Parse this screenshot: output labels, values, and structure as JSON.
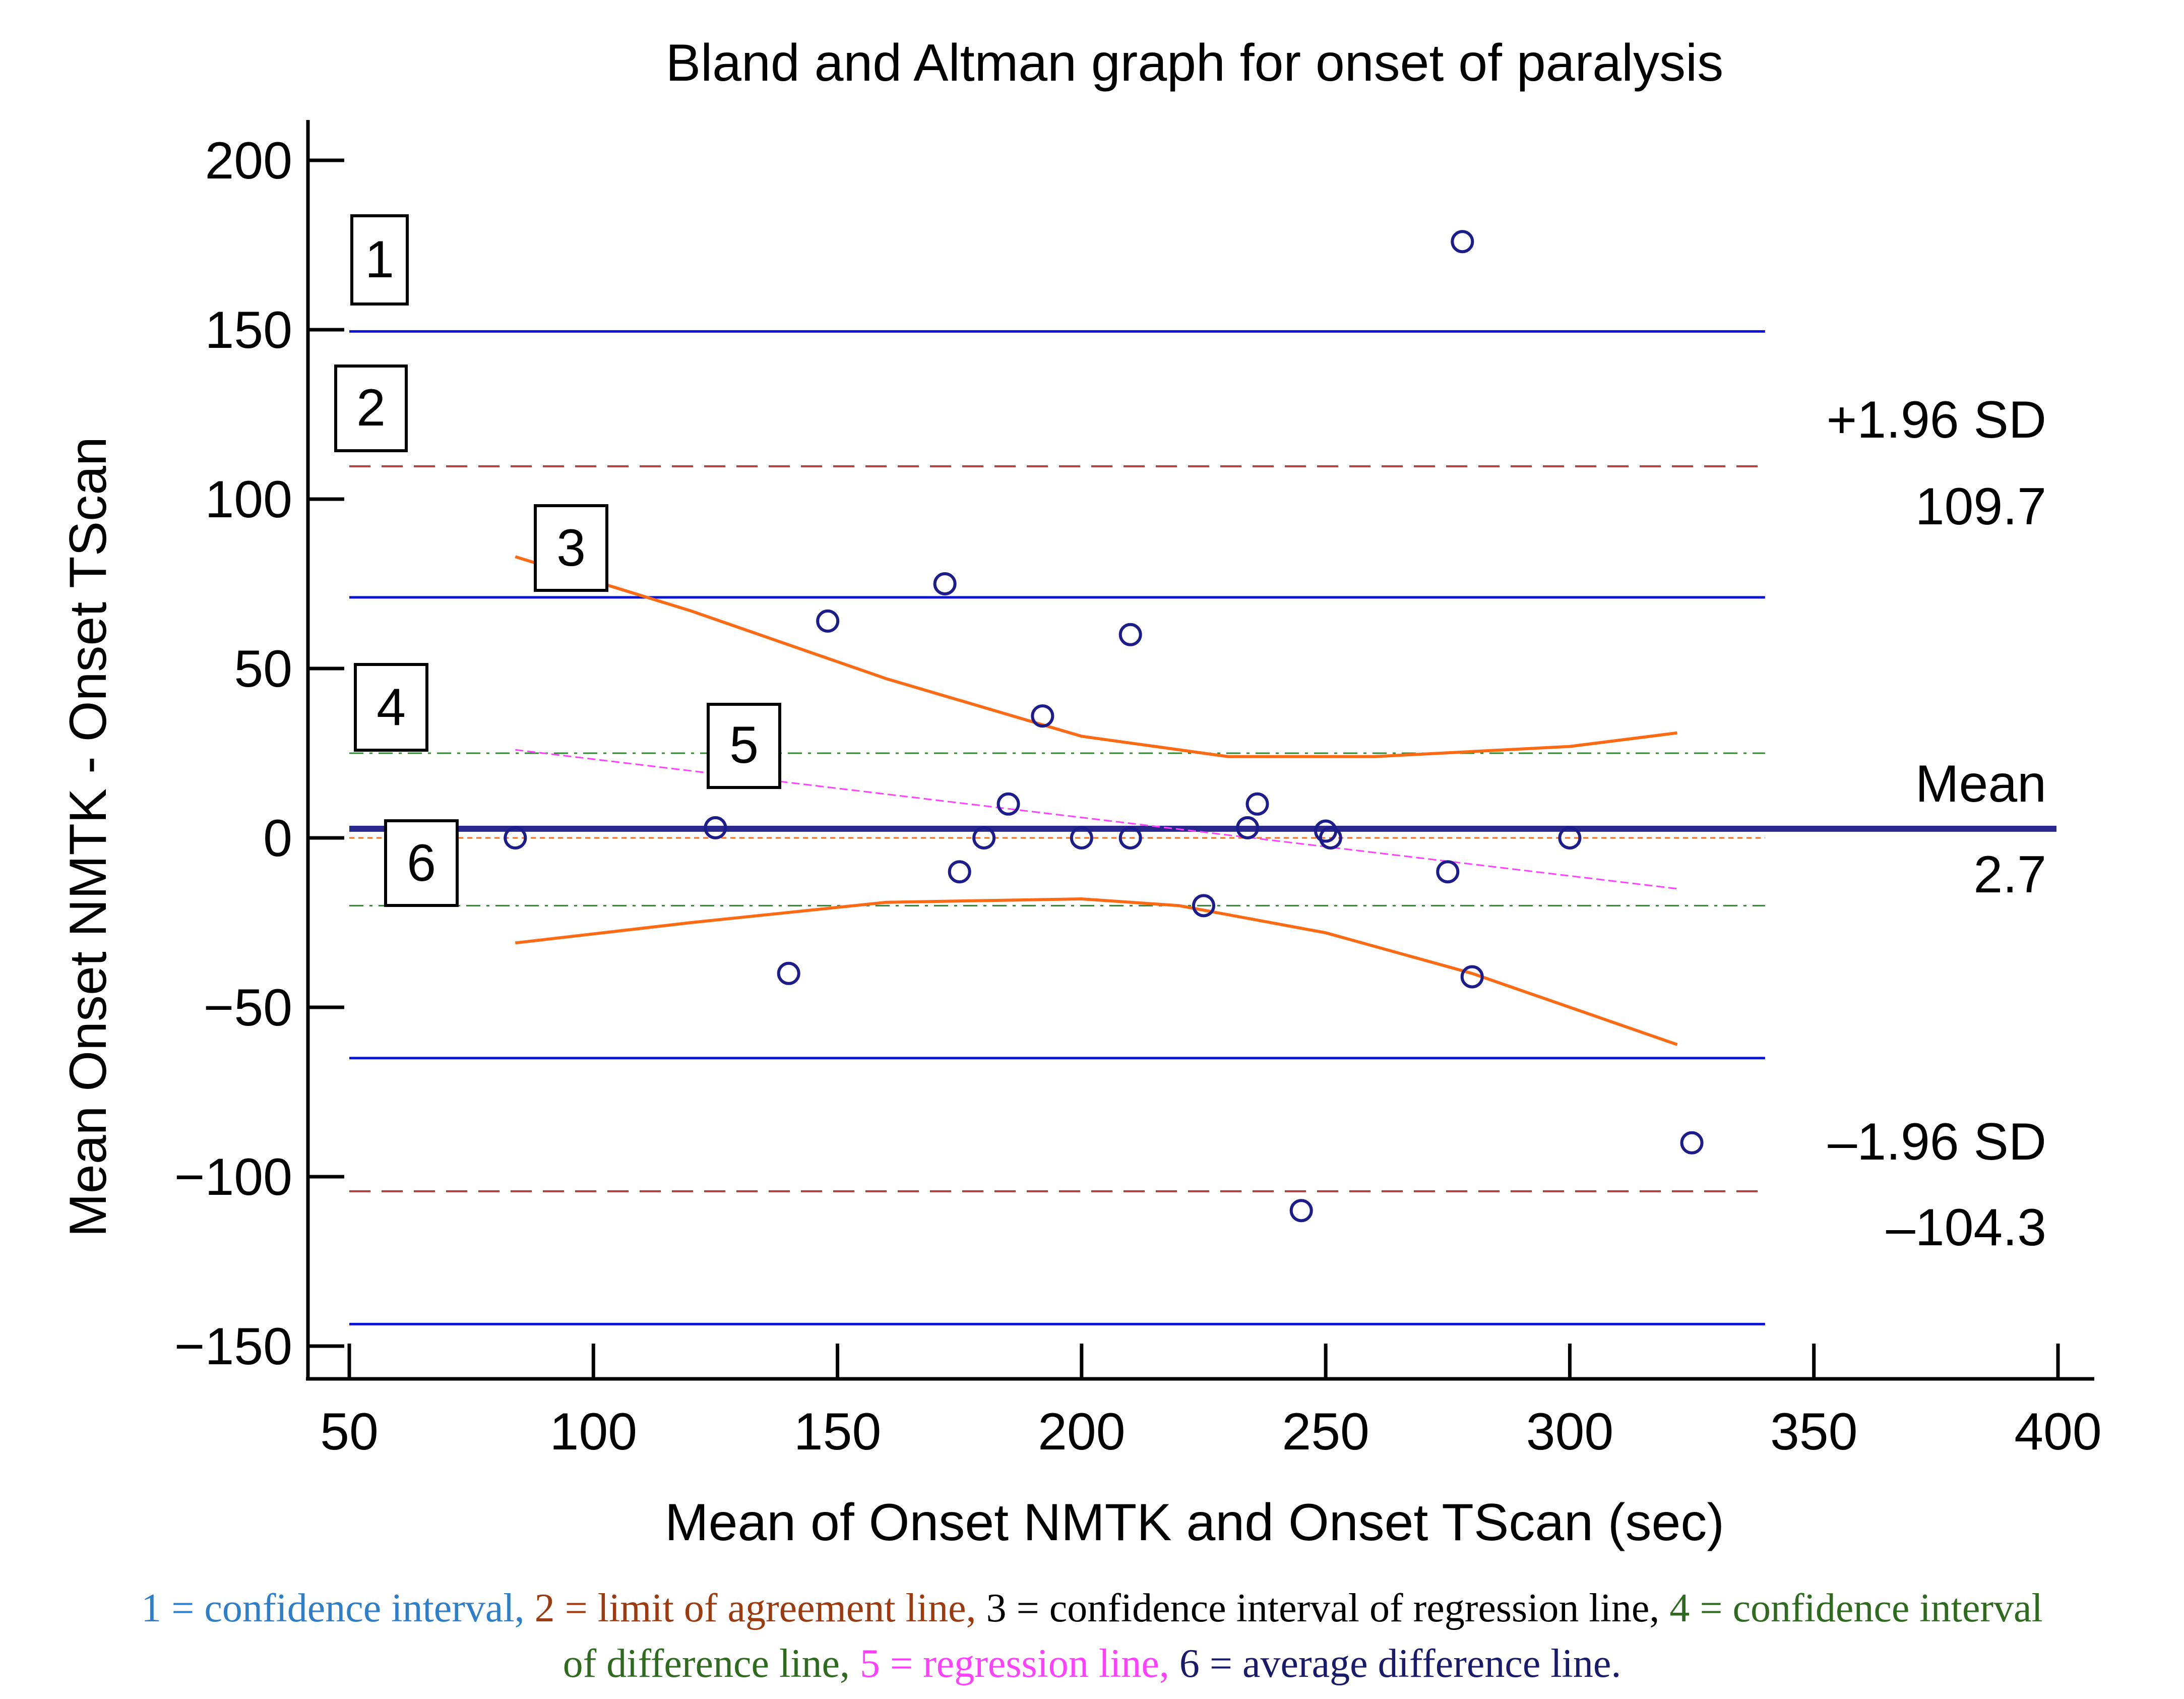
{
  "chart_data": {
    "type": "scatter",
    "title": "Bland and Altman graph for onset of paralysis",
    "xlabel": "Mean of Onset NMTK and Onset TScan  (sec)",
    "ylabel": "Mean  Onset NMTK - Onset TScan",
    "xlim": [
      50,
      400
    ],
    "ylim": [
      -150,
      200
    ],
    "xticks": [
      50,
      100,
      150,
      200,
      250,
      300,
      350,
      400
    ],
    "yticks": [
      200,
      150,
      100,
      50,
      0,
      -50,
      -100,
      -150
    ],
    "ytick_labels": [
      "200",
      "150",
      "100",
      "50",
      "0",
      "−50",
      "−100",
      "−150"
    ],
    "points": [
      {
        "x": 84,
        "y": 0
      },
      {
        "x": 125,
        "y": 3
      },
      {
        "x": 140,
        "y": -40
      },
      {
        "x": 148,
        "y": 64
      },
      {
        "x": 172,
        "y": 75
      },
      {
        "x": 175,
        "y": -10
      },
      {
        "x": 180,
        "y": 0
      },
      {
        "x": 185,
        "y": 10
      },
      {
        "x": 192,
        "y": 36
      },
      {
        "x": 200,
        "y": 0
      },
      {
        "x": 210,
        "y": 60
      },
      {
        "x": 210,
        "y": 0
      },
      {
        "x": 225,
        "y": -20
      },
      {
        "x": 234,
        "y": 3
      },
      {
        "x": 236,
        "y": 10
      },
      {
        "x": 245,
        "y": -110
      },
      {
        "x": 250,
        "y": 2
      },
      {
        "x": 251,
        "y": 0
      },
      {
        "x": 275,
        "y": -10
      },
      {
        "x": 278,
        "y": 176
      },
      {
        "x": 280,
        "y": -41
      },
      {
        "x": 300,
        "y": 0
      },
      {
        "x": 325,
        "y": -90
      }
    ],
    "mean": 2.7,
    "upper_loa": 109.7,
    "lower_loa": -104.3,
    "ci_bands": [
      {
        "name": "upper LoA CI upper",
        "y": 149.5
      },
      {
        "name": "upper LoA CI lower",
        "y": 71
      },
      {
        "name": "lower LoA CI upper",
        "y": -65
      },
      {
        "name": "lower LoA CI lower",
        "y": -143.5
      }
    ],
    "ci_x_range": [
      50,
      340
    ],
    "mean_ci": [
      25,
      -20
    ],
    "regression": {
      "x": [
        84,
        322
      ],
      "y": [
        26,
        -15
      ]
    },
    "regression_ci_upper": {
      "x": [
        84,
        120,
        160,
        200,
        230,
        260,
        300,
        322
      ],
      "y": [
        83,
        67,
        47,
        30,
        24,
        24,
        27,
        31
      ]
    },
    "regression_ci_lower": {
      "x": [
        84,
        120,
        160,
        200,
        220,
        250,
        280,
        322
      ],
      "y": [
        -31,
        -25,
        -19,
        -18,
        -20,
        -28,
        -40,
        -61
      ]
    },
    "annotations": {
      "upper_sd_label": "+1.96 SD",
      "upper_sd_value": "109.7",
      "mean_label": "Mean",
      "mean_value": "2.7",
      "lower_sd_label": "–1.96 SD",
      "lower_sd_value": "–104.3"
    },
    "box_labels": [
      "1",
      "2",
      "3",
      "4",
      "5",
      "6"
    ],
    "colors": {
      "ci": "#0a14d2",
      "loa": "#b04040",
      "regression_ci": "#ff6a14",
      "mean_ci": "#2e8b2e",
      "regression": "#ff40ff",
      "mean": "#28288c",
      "zero": "#ff6a14",
      "points": "#1c1c8a"
    }
  },
  "caption": {
    "line1": [
      {
        "text": "1 = confidence interval, ",
        "color": "#2e7fc8"
      },
      {
        "text": "2 = limit of agreement line, ",
        "color": "#9c3a10"
      },
      {
        "text": "3 = confidence interval of regression line, ",
        "color": "#000000"
      },
      {
        "text": "4 = confidence interval",
        "color": "#2e6b1e"
      }
    ],
    "line2": [
      {
        "text": "of difference line, ",
        "color": "#2e6b1e"
      },
      {
        "text": "5 = regression line, ",
        "color": "#ff40ff"
      },
      {
        "text": "6 = average difference line.",
        "color": "#1a1a6a"
      }
    ]
  }
}
